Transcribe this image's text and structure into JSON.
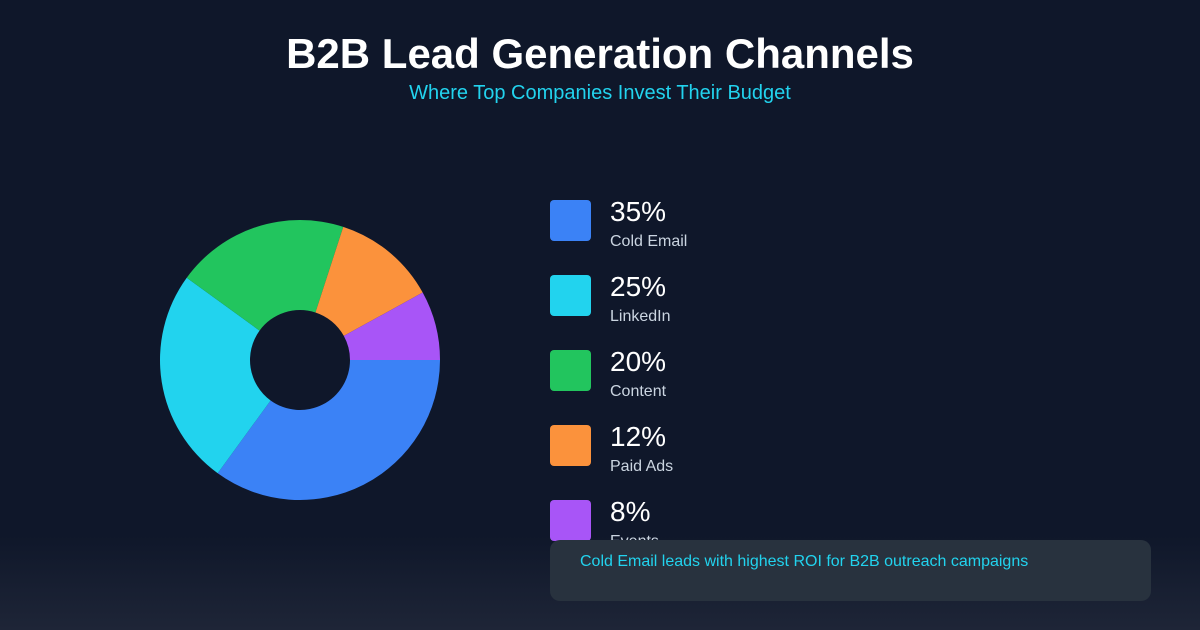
{
  "header": {
    "title": "B2B Lead Generation Channels",
    "subtitle": "Where Top Companies Invest Their Budget"
  },
  "chart_data": {
    "type": "pie",
    "donut": true,
    "categories": [
      "Cold Email",
      "LinkedIn",
      "Content",
      "Paid Ads",
      "Events"
    ],
    "values": [
      35,
      25,
      20,
      12,
      8
    ],
    "value_labels": [
      "35%",
      "25%",
      "20%",
      "12%",
      "8%"
    ],
    "colors": [
      "#3b82f6",
      "#22d3ee",
      "#22c55e",
      "#fb923c",
      "#a855f7"
    ],
    "legend": "right"
  },
  "callout": {
    "text": "Cold Email leads with highest ROI for B2B outreach campaigns"
  }
}
